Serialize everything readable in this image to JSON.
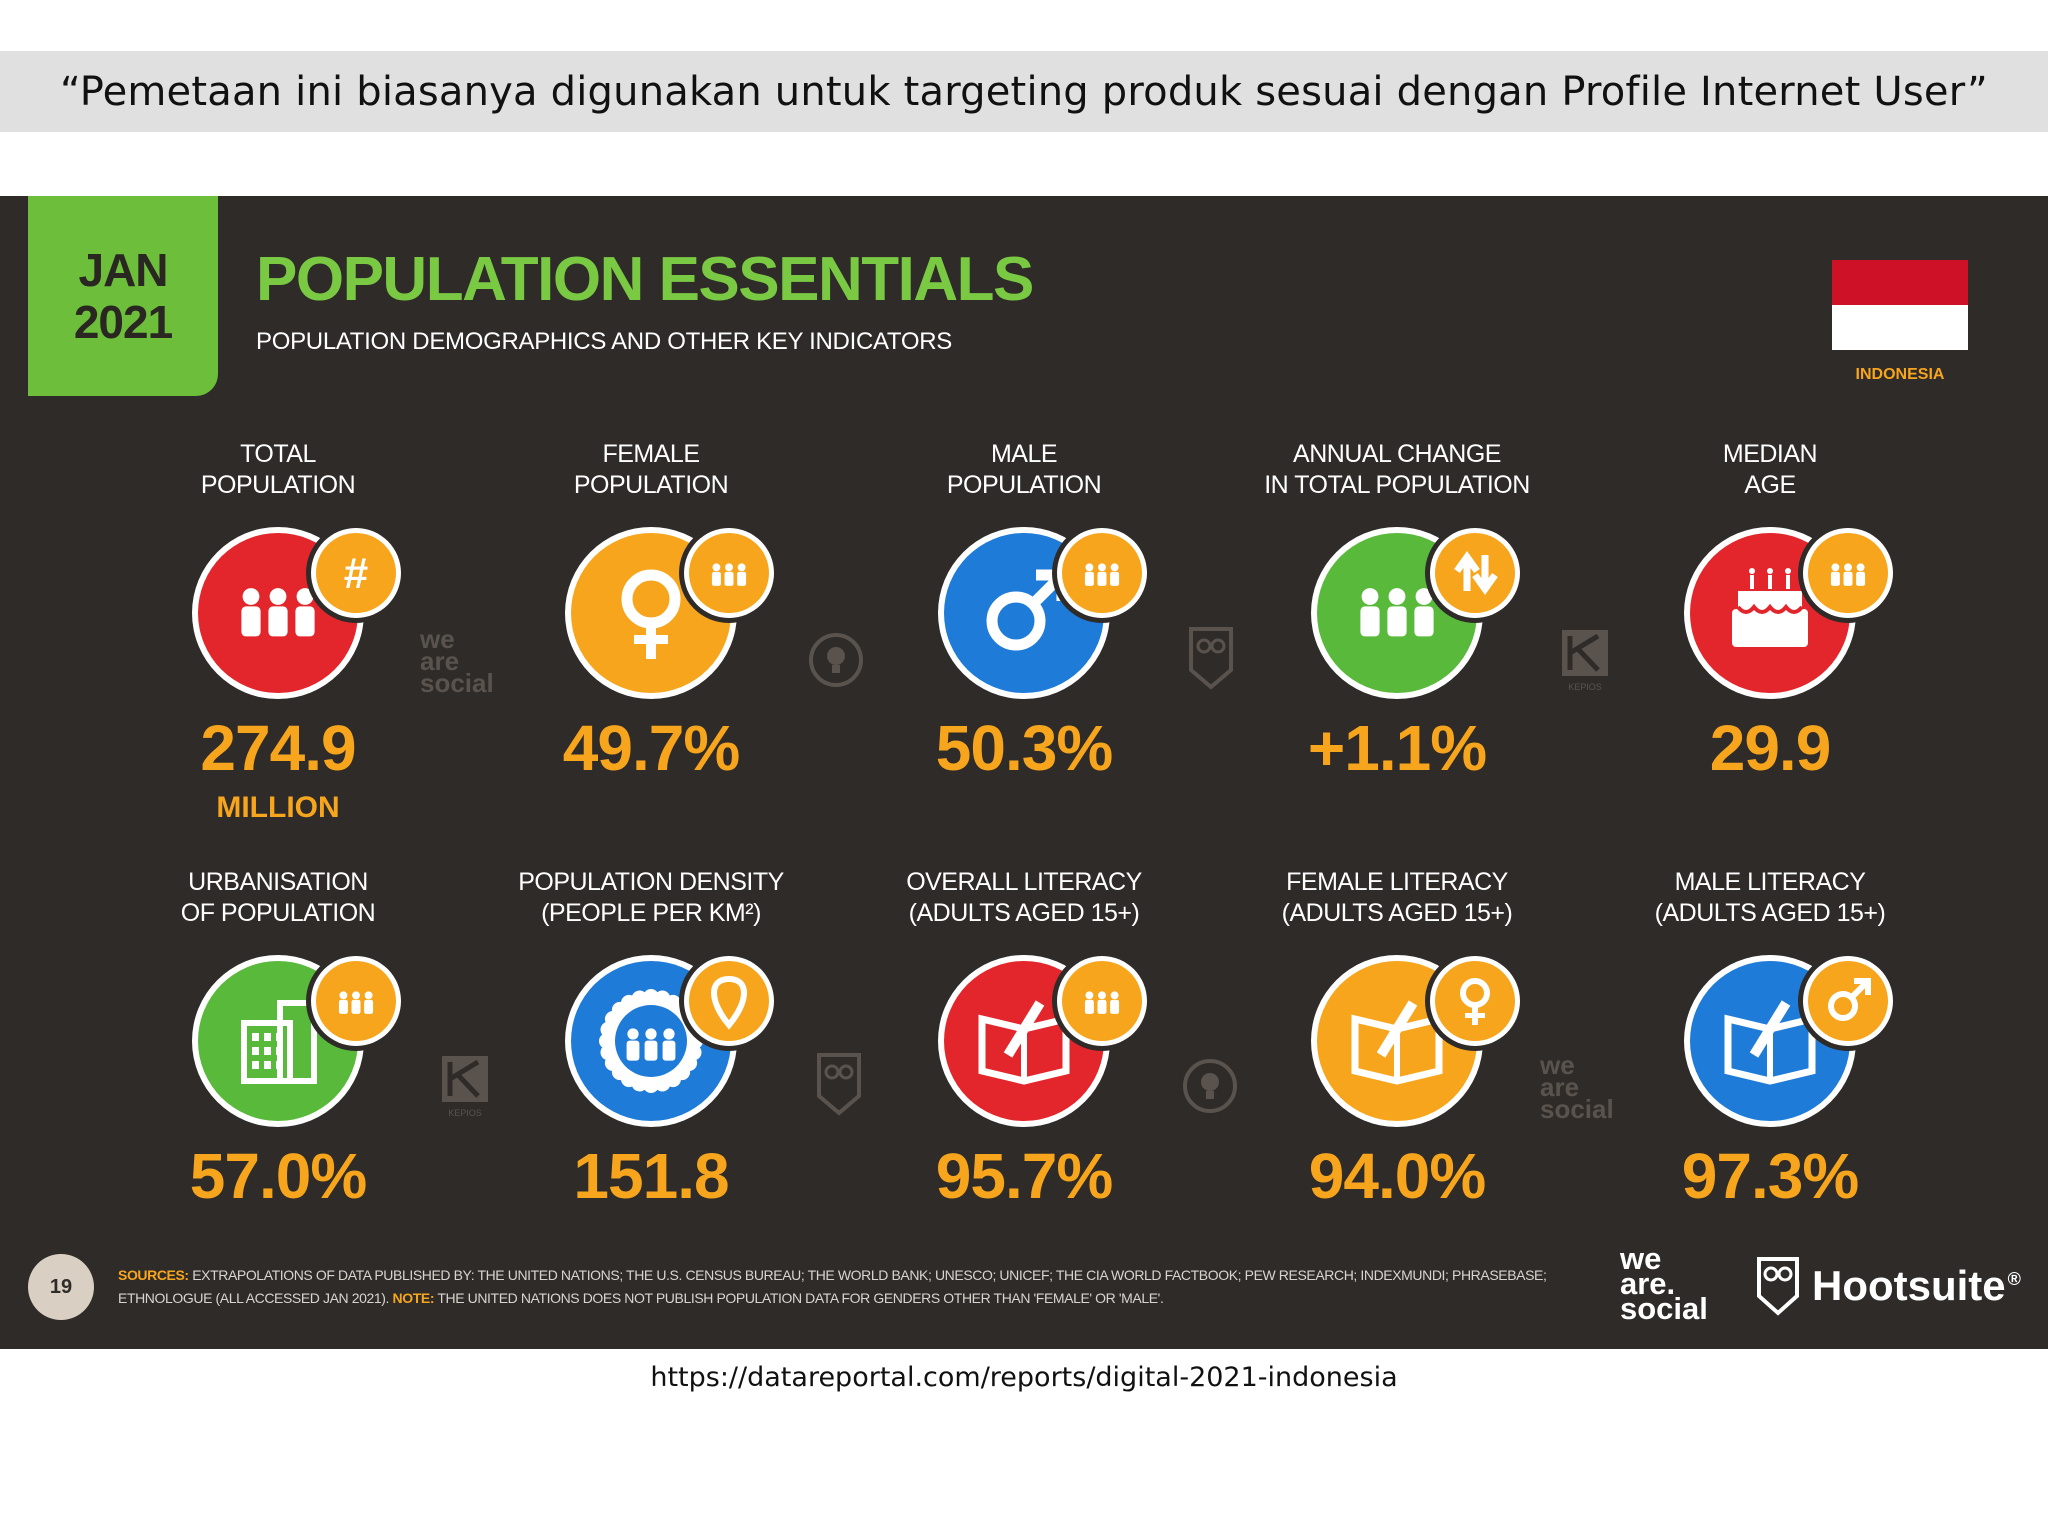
{
  "quote": "“Pemetaan ini biasanya digunakan untuk targeting produk sesuai dengan Profile Internet User”",
  "slide": {
    "date_month": "JAN",
    "date_year": "2021",
    "title": "POPULATION ESSENTIALS",
    "subtitle": "POPULATION DEMOGRAPHICS AND OTHER KEY INDICATORS",
    "country": "INDONESIA"
  },
  "colors": {
    "accent_green": "#6dbf3b",
    "value_orange": "#f7a51c",
    "red": "#e3262b",
    "orange": "#f7a51c",
    "blue": "#1f7bd8",
    "green": "#59b93b",
    "background": "#2e2b29"
  },
  "metrics": [
    {
      "label1": "TOTAL",
      "label2": "POPULATION",
      "value": "274.9",
      "unit": "MILLION",
      "icon": "people-icon",
      "badge": "hash-icon",
      "color": "red"
    },
    {
      "label1": "FEMALE",
      "label2": "POPULATION",
      "value": "49.7%",
      "icon": "female-icon",
      "badge": "people-icon",
      "color": "orange"
    },
    {
      "label1": "MALE",
      "label2": "POPULATION",
      "value": "50.3%",
      "icon": "male-icon",
      "badge": "people-icon",
      "color": "blue"
    },
    {
      "label1": "ANNUAL CHANGE",
      "label2": "IN TOTAL POPULATION",
      "value": "+1.1%",
      "icon": "people-icon",
      "badge": "up-down-arrows-icon",
      "color": "green"
    },
    {
      "label1": "MEDIAN",
      "label2": "AGE",
      "value": "29.9",
      "icon": "cake-icon",
      "badge": "people-icon",
      "color": "red"
    },
    {
      "label1": "URBANISATION",
      "label2": "OF POPULATION",
      "value": "57.0%",
      "icon": "building-icon",
      "badge": "people-icon",
      "color": "green"
    },
    {
      "label1": "POPULATION DENSITY",
      "label2": "(PEOPLE PER KM²)",
      "value": "151.8",
      "icon": "crowd-badge-icon",
      "badge": "location-pin-icon",
      "color": "blue"
    },
    {
      "label1": "OVERALL LITERACY",
      "label2": "(ADULTS AGED 15+)",
      "value": "95.7%",
      "icon": "book-icon",
      "badge": "people-icon",
      "color": "red"
    },
    {
      "label1": "FEMALE LITERACY",
      "label2": "(ADULTS AGED 15+)",
      "value": "94.0%",
      "icon": "book-icon",
      "badge": "female-icon",
      "color": "orange"
    },
    {
      "label1": "MALE LITERACY",
      "label2": "(ADULTS AGED 15+)",
      "value": "97.3%",
      "icon": "book-icon",
      "badge": "male-icon",
      "color": "blue"
    }
  ],
  "footer": {
    "page_number": "19",
    "sources_label": "SOURCES:",
    "sources_text": "EXTRAPOLATIONS OF DATA PUBLISHED BY: THE UNITED NATIONS; THE U.S. CENSUS BUREAU; THE WORLD BANK; UNESCO; UNICEF; THE CIA WORLD FACTBOOK; PEW RESEARCH; INDEXMUNDI; PHRASEBASE; ETHNOLOGUE (ALL ACCESSED JAN 2021).",
    "note_label": "NOTE:",
    "note_text": "THE UNITED NATIONS DOES NOT PUBLISH POPULATION DATA FOR GENDERS OTHER THAN 'FEMALE' OR 'MALE'.",
    "brand1": "we are social",
    "brand2": "Hootsuite",
    "brand2_mark": "®"
  },
  "url": "https://datareportal.com/reports/digital-2021-indonesia"
}
